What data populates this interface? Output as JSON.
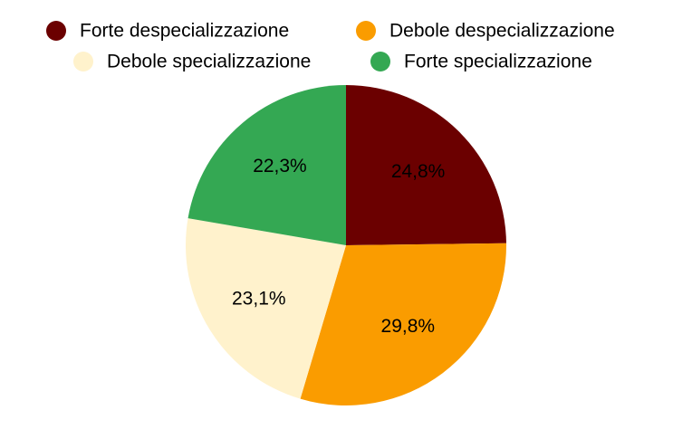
{
  "chart_data": {
    "type": "pie",
    "categories": [
      "Forte despecializzazione",
      "Debole despecializzazione",
      "Debole specializzazione",
      "Forte specializzazione"
    ],
    "values": [
      24.8,
      29.8,
      23.1,
      22.3
    ],
    "value_labels": [
      "24,8%",
      "29,8%",
      "23,1%",
      "22,3%"
    ],
    "colors": [
      "#6b0000",
      "#fa9c00",
      "#fff2cc",
      "#34a853"
    ]
  }
}
